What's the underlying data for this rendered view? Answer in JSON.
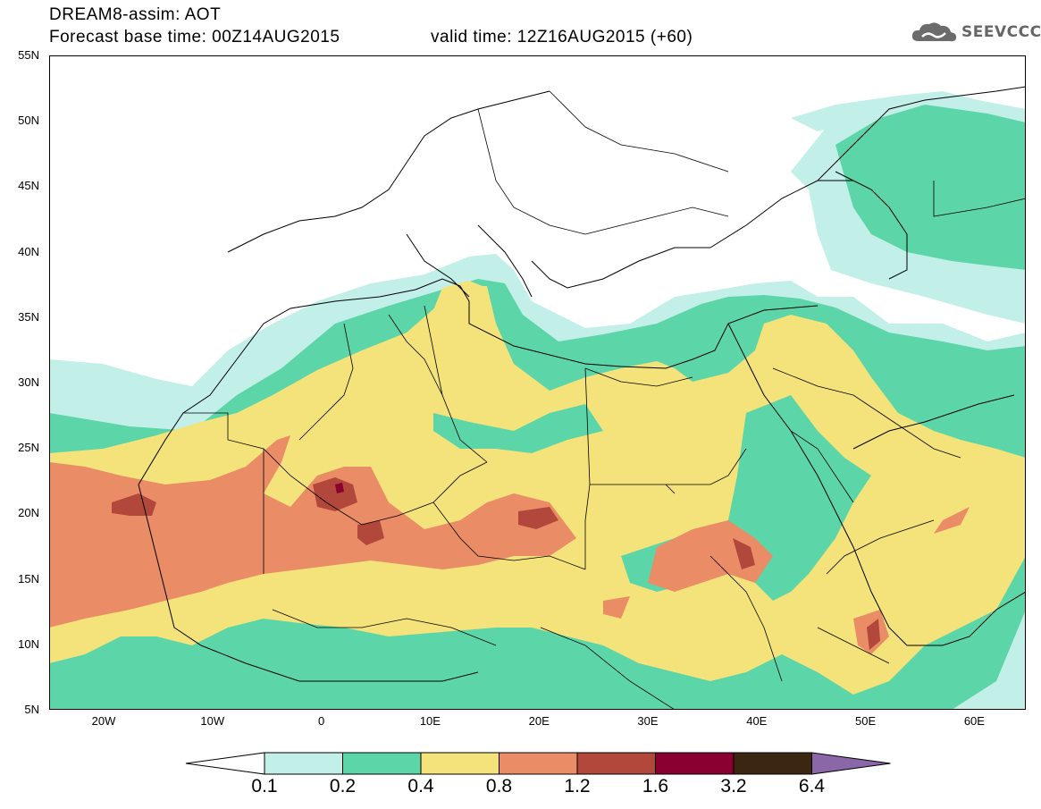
{
  "header": {
    "title_line1": "DREAM8-assim: AOT",
    "title_line2": "Forecast base time: 00Z14AUG2015",
    "valid_time": "valid time: 12Z16AUG2015 (+60)"
  },
  "logo": {
    "icon": "cloud-icon",
    "text": "SEEVCCC"
  },
  "axes": {
    "lat_labels": [
      "55N",
      "50N",
      "45N",
      "40N",
      "35N",
      "30N",
      "25N",
      "20N",
      "15N",
      "10N",
      "5N"
    ],
    "lon_labels": [
      "20W",
      "10W",
      "0",
      "10E",
      "20E",
      "30E",
      "40E",
      "50E",
      "60E"
    ]
  },
  "colorbar": {
    "labels": [
      "0.1",
      "0.2",
      "0.4",
      "0.8",
      "1.2",
      "1.6",
      "3.2",
      "6.4"
    ],
    "colors": [
      "#ffffff",
      "#c2efe8",
      "#5cd6a8",
      "#f4e27a",
      "#ea8c66",
      "#b2483c",
      "#8a0030",
      "#3b2612",
      "#8a68a8"
    ]
  }
}
